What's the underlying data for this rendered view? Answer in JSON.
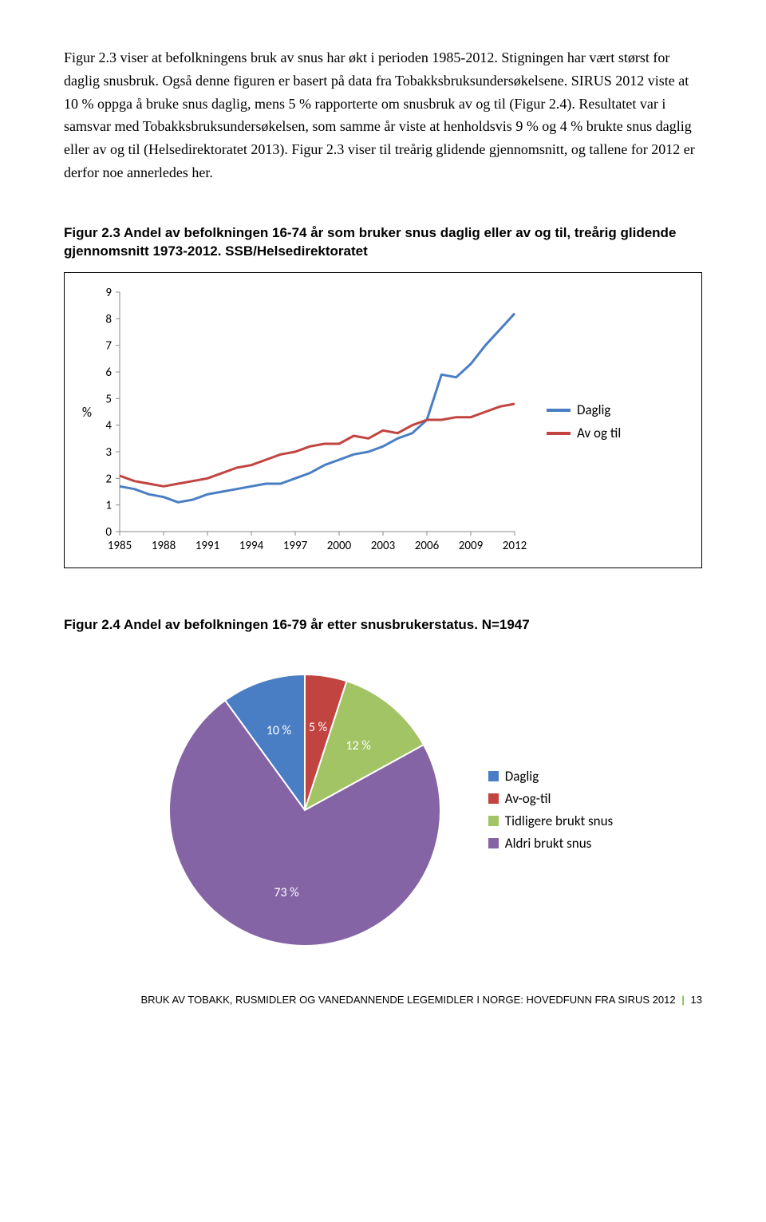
{
  "body_text": "Figur 2.3 viser at befolkningens bruk av snus har økt i perioden 1985-2012. Stigningen har vært størst for daglig snusbruk. Også denne figuren er basert på data fra Tobakksbruksundersøkelsene. SIRUS 2012 viste at 10 % oppga å bruke snus daglig, mens 5 % rapporterte om snusbruk av og til (Figur 2.4). Resultatet var i samsvar med Tobakksbruksundersøkelsen, som samme år viste at henholdsvis 9 % og 4 % brukte snus daglig eller av og til (Helsedirektoratet 2013). Figur 2.3 viser til treårig glidende gjennomsnitt, og tallene for 2012 er derfor noe annerledes her.",
  "fig23_title": "Figur 2.3 Andel av befolkningen 16-74 år som bruker snus daglig eller av og til, treårig glidende gjennomsnitt 1973-2012. SSB/Helsedirektoratet",
  "fig24_title": "Figur 2.4 Andel av befolkningen 16-79 år etter snusbrukerstatus. N=1947",
  "line_chart": {
    "type": "line",
    "y_axis_title": "%",
    "y_ticks": [
      0,
      1,
      2,
      3,
      4,
      5,
      6,
      7,
      8,
      9
    ],
    "x_ticks": [
      "1985",
      "1988",
      "1991",
      "1994",
      "1997",
      "2000",
      "2003",
      "2006",
      "2009",
      "2012"
    ],
    "ylim": [
      0,
      9
    ],
    "series": [
      {
        "name": "Daglig",
        "color": "#4a7ec4",
        "line_width": 3,
        "values": [
          1.7,
          1.6,
          1.4,
          1.3,
          1.1,
          1.2,
          1.4,
          1.5,
          1.6,
          1.7,
          1.8,
          1.8,
          2.0,
          2.2,
          2.5,
          2.7,
          2.9,
          3.0,
          3.2,
          3.5,
          3.7,
          4.2,
          5.9,
          5.8,
          6.3,
          7.0,
          7.6,
          8.2
        ]
      },
      {
        "name": "Av og til",
        "color": "#c24440",
        "line_width": 3,
        "values": [
          2.1,
          1.9,
          1.8,
          1.7,
          1.8,
          1.9,
          2.0,
          2.2,
          2.4,
          2.5,
          2.7,
          2.9,
          3.0,
          3.2,
          3.3,
          3.3,
          3.6,
          3.5,
          3.8,
          3.7,
          4.0,
          4.2,
          4.2,
          4.3,
          4.3,
          4.5,
          4.7,
          4.8
        ]
      }
    ],
    "background_color": "#ffffff",
    "axis_color": "#888888",
    "text_color": "#000000",
    "tick_fontsize": 15,
    "label_fontsize": 17
  },
  "pie_chart": {
    "type": "pie",
    "slices": [
      {
        "label": "Daglig",
        "value": 10,
        "color": "#4a7ec4",
        "display": "10 %"
      },
      {
        "label": "Av-og-til",
        "value": 5,
        "color": "#c24440",
        "display": "5 %"
      },
      {
        "label": "Tidligere brukt snus",
        "value": 12,
        "color": "#a2c465",
        "display": "12 %"
      },
      {
        "label": "Aldri brukt snus",
        "value": 73,
        "color": "#8464a5",
        "display": "73 %"
      }
    ],
    "label_color": "#ffffff",
    "label_fontsize": 16,
    "legend_fontsize": 17
  },
  "footer": {
    "text": "BRUK AV TOBAKK, RUSMIDLER OG VANEDANNENDE LEGEMIDLER I NORGE: HOVEDFUNN FRA SIRUS 2012",
    "page": "13",
    "sep_color": "#7fba42"
  }
}
